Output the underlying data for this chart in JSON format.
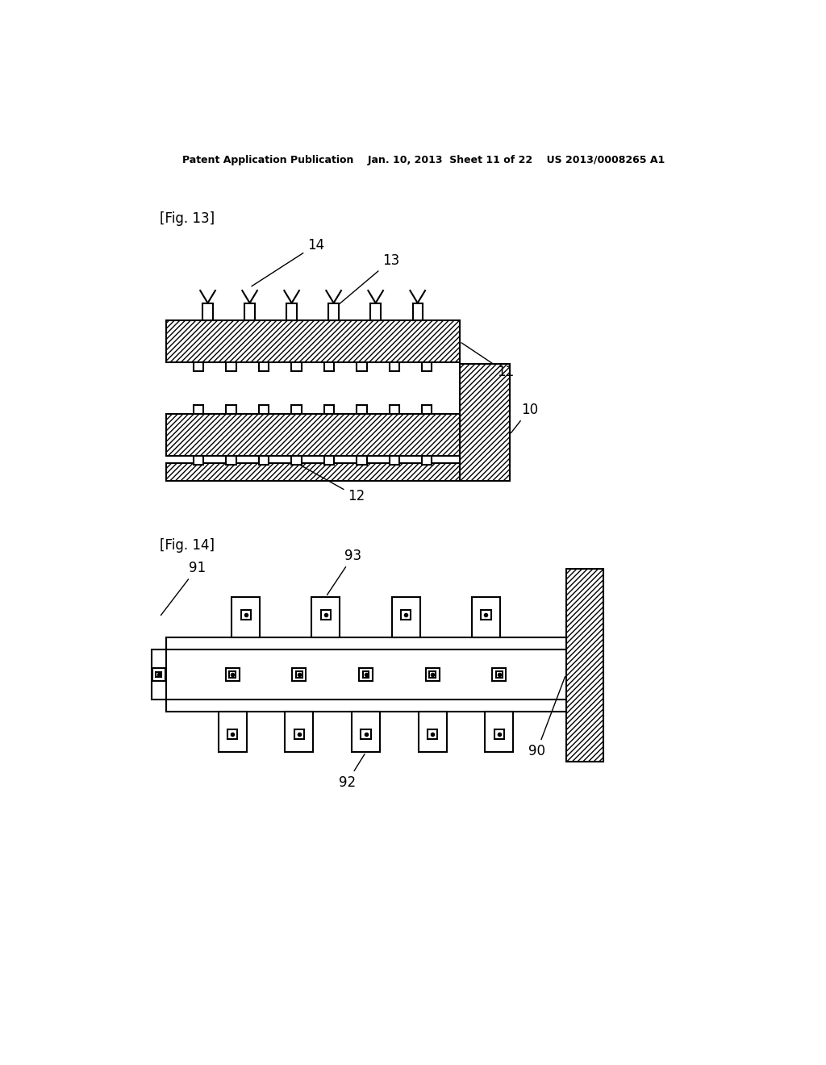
{
  "bg_color": "#ffffff",
  "line_color": "#000000",
  "header_text": "Patent Application Publication    Jan. 10, 2013  Sheet 11 of 22    US 2013/0008265 A1",
  "fig13_label": "[Fig. 13]",
  "fig14_label": "[Fig. 14]"
}
